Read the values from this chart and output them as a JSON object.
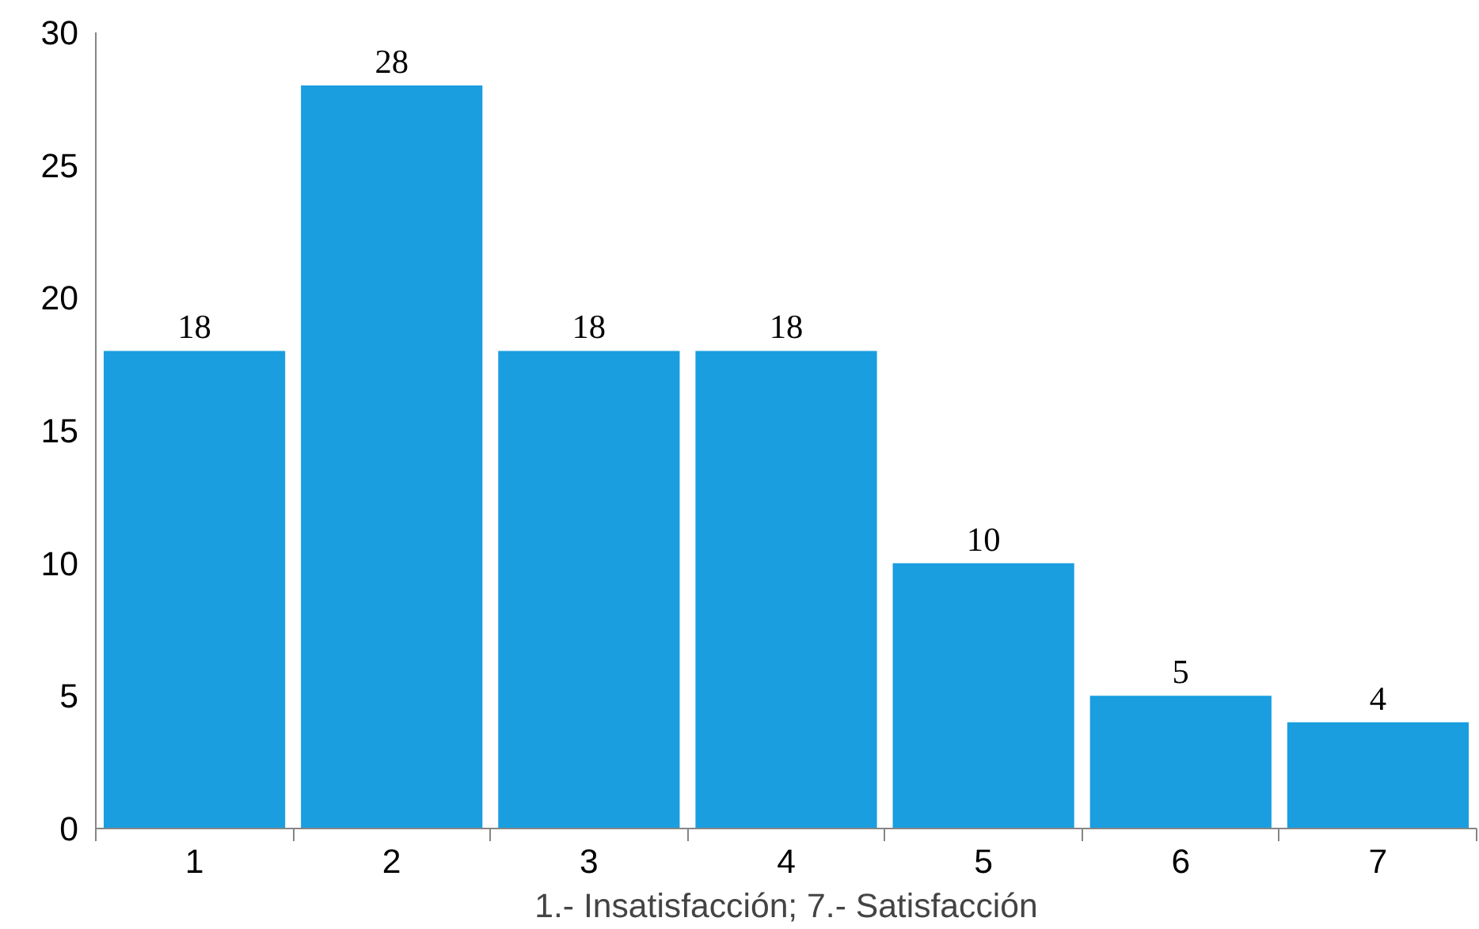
{
  "chart_data": {
    "type": "bar",
    "xlabel": "1.- Insatisfacción; 7.- Satisfacción",
    "categories": [
      "1",
      "2",
      "3",
      "4",
      "5",
      "6",
      "7"
    ],
    "values": [
      18,
      28,
      18,
      18,
      10,
      5,
      4
    ],
    "color": "#1a9ee0",
    "ylim": [
      0,
      30
    ],
    "yticks": [
      0,
      5,
      10,
      15,
      20,
      25,
      30
    ],
    "grid": false,
    "data_labels": true
  }
}
